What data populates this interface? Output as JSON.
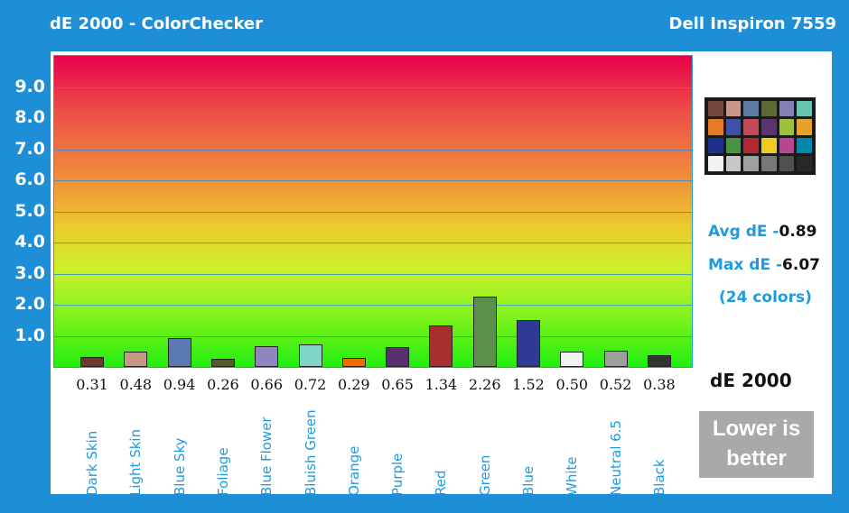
{
  "title": "dE 2000 - ColorChecker",
  "device": "Dell Inspiron 7559",
  "chart_data": {
    "type": "bar",
    "title": "dE 2000 - ColorChecker",
    "xlabel": "",
    "ylabel": "dE 2000",
    "ylim": [
      0,
      10
    ],
    "yticks": [
      "1.0",
      "2.0",
      "3.0",
      "4.0",
      "5.0",
      "6.0",
      "7.0",
      "8.0",
      "9.0"
    ],
    "categories": [
      "Dark Skin",
      "Light Skin",
      "Blue Sky",
      "Foliage",
      "Blue Flower",
      "Bluish Green",
      "Orange",
      "Purple",
      "Red",
      "Green",
      "Blue",
      "White",
      "Neutral 6.5",
      "Black"
    ],
    "values": [
      0.31,
      0.48,
      0.94,
      0.26,
      0.66,
      0.72,
      0.29,
      0.65,
      1.34,
      2.26,
      1.52,
      0.5,
      0.52,
      0.38
    ],
    "value_labels": [
      "0.31",
      "0.48",
      "0.94",
      "0.26",
      "0.66",
      "0.72",
      "0.29",
      "0.65",
      "1.34",
      "2.26",
      "1.52",
      "0.50",
      "0.52",
      "0.38"
    ],
    "bar_colors": [
      "#6b3a2a",
      "#c49a86",
      "#5b7ab4",
      "#4f5f23",
      "#8d86c0",
      "#7fd6c6",
      "#ef6c00",
      "#5a2f6e",
      "#a8302c",
      "#5d8f4c",
      "#2e3a96",
      "#f2f2f2",
      "#9e9e9e",
      "#333333"
    ]
  },
  "stats": {
    "avg_label": "Avg dE -",
    "avg_value": "0.89",
    "max_label": "Max dE -",
    "max_value": "6.07",
    "colors_note": "(24 colors)"
  },
  "unit_label": "dE 2000",
  "note": "Lower is better",
  "checker_colors": [
    "#74483a",
    "#c8968a",
    "#5e7aa6",
    "#5a6c33",
    "#8580b8",
    "#66c4b0",
    "#e67a26",
    "#3e50a8",
    "#c4495a",
    "#5a3470",
    "#9ec13c",
    "#e8a22c",
    "#1f2f8c",
    "#489442",
    "#b42632",
    "#eecb20",
    "#b8458e",
    "#0088a8",
    "#f2f2f2",
    "#c8c8c8",
    "#a0a0a0",
    "#787878",
    "#505050",
    "#282828"
  ]
}
